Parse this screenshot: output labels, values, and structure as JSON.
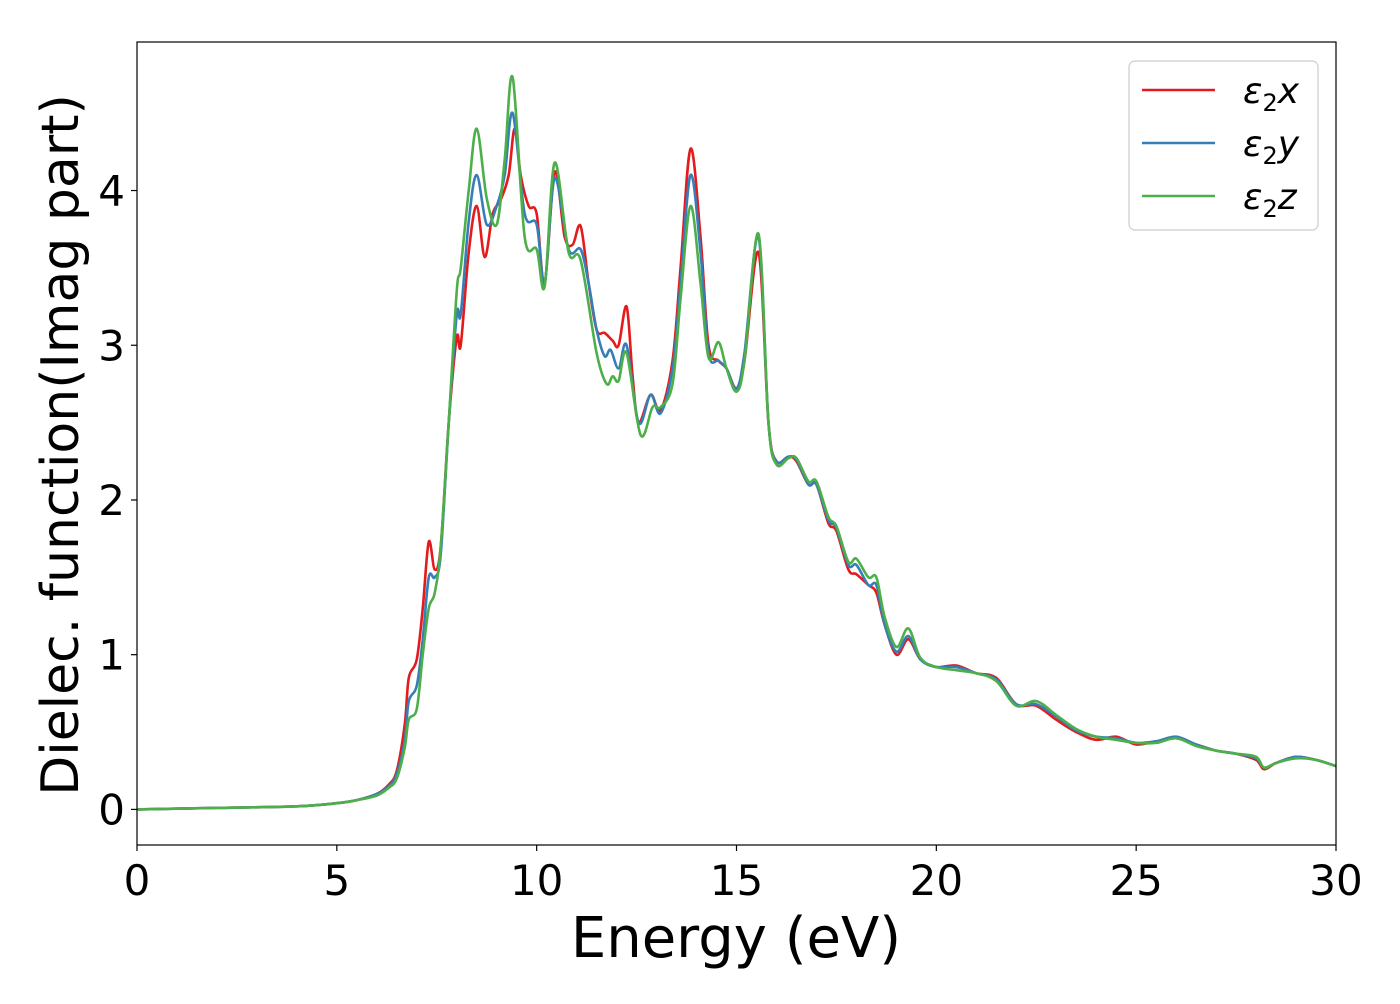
{
  "chart_data": {
    "type": "line",
    "title": "",
    "xlabel": "Energy (eV)",
    "ylabel": "Dielec. function(Imag part)",
    "xlim": [
      0,
      30
    ],
    "ylim": [
      -0.23,
      4.96
    ],
    "xticks": [
      0,
      5,
      10,
      15,
      20,
      25,
      30
    ],
    "yticks": [
      0,
      1,
      2,
      3,
      4
    ],
    "grid": false,
    "legend": {
      "placement": "top-right",
      "entries": [
        {
          "base": "ε",
          "sub": "2",
          "var": "x"
        },
        {
          "base": "ε",
          "sub": "2",
          "var": "y"
        },
        {
          "base": "ε",
          "sub": "2",
          "var": "z"
        }
      ]
    },
    "series": [
      {
        "name": "ε2x",
        "color": "#e41a1c",
        "x": [
          0,
          2,
          4,
          5,
          5.5,
          6,
          6.3,
          6.5,
          6.7,
          6.8,
          7.0,
          7.15,
          7.3,
          7.45,
          7.6,
          7.8,
          8.0,
          8.1,
          8.3,
          8.5,
          8.7,
          8.9,
          9.1,
          9.3,
          9.45,
          9.6,
          9.8,
          10.0,
          10.2,
          10.45,
          10.7,
          10.9,
          11.1,
          11.3,
          11.5,
          11.7,
          11.9,
          12.05,
          12.25,
          12.4,
          12.55,
          12.85,
          13.1,
          13.4,
          13.6,
          13.85,
          14.1,
          14.3,
          14.55,
          14.75,
          15.0,
          15.2,
          15.55,
          15.8,
          16.0,
          16.3,
          16.5,
          16.8,
          17.0,
          17.3,
          17.5,
          17.8,
          18.0,
          18.3,
          18.5,
          18.7,
          19.0,
          19.3,
          19.6,
          20,
          20.5,
          21,
          21.5,
          22,
          22.5,
          23,
          23.5,
          24,
          24.5,
          25,
          25.5,
          26,
          26.5,
          27,
          27.5,
          28,
          28.2,
          28.5,
          29,
          29.5,
          30
        ],
        "y": [
          0,
          0.01,
          0.02,
          0.04,
          0.06,
          0.1,
          0.16,
          0.25,
          0.55,
          0.85,
          0.97,
          1.3,
          1.73,
          1.55,
          1.7,
          2.5,
          3.05,
          3.0,
          3.6,
          3.9,
          3.57,
          3.85,
          3.94,
          4.1,
          4.4,
          4.1,
          3.9,
          3.85,
          3.4,
          4.12,
          3.7,
          3.65,
          3.77,
          3.4,
          3.1,
          3.08,
          3.03,
          3.0,
          3.25,
          2.8,
          2.5,
          2.68,
          2.58,
          2.9,
          3.5,
          4.27,
          3.7,
          3.0,
          2.9,
          2.85,
          2.72,
          2.9,
          3.6,
          2.5,
          2.25,
          2.28,
          2.25,
          2.1,
          2.1,
          1.85,
          1.8,
          1.55,
          1.52,
          1.45,
          1.4,
          1.2,
          1.0,
          1.1,
          0.97,
          0.92,
          0.93,
          0.88,
          0.85,
          0.68,
          0.67,
          0.58,
          0.5,
          0.45,
          0.47,
          0.42,
          0.44,
          0.46,
          0.42,
          0.38,
          0.36,
          0.32,
          0.26,
          0.3,
          0.34,
          0.32,
          0.28
        ]
      },
      {
        "name": "ε2y",
        "color": "#377eb8",
        "x": [
          0,
          2,
          4,
          5,
          5.5,
          6,
          6.3,
          6.5,
          6.7,
          6.8,
          7.0,
          7.15,
          7.3,
          7.45,
          7.6,
          7.8,
          8.0,
          8.1,
          8.3,
          8.5,
          8.75,
          9.0,
          9.2,
          9.4,
          9.7,
          10.0,
          10.2,
          10.45,
          10.8,
          11.1,
          11.3,
          11.5,
          11.7,
          11.85,
          12.05,
          12.25,
          12.55,
          12.85,
          13.1,
          13.4,
          13.6,
          13.85,
          14.1,
          14.3,
          14.55,
          14.75,
          15.0,
          15.2,
          15.55,
          15.8,
          16.0,
          16.3,
          16.5,
          16.8,
          17.0,
          17.3,
          17.5,
          17.8,
          18.0,
          18.3,
          18.5,
          18.7,
          19.0,
          19.3,
          19.6,
          20,
          20.5,
          21,
          21.5,
          22,
          22.5,
          23,
          23.5,
          24,
          24.5,
          25,
          25.5,
          26,
          26.5,
          27,
          27.5,
          28,
          28.2,
          28.5,
          29,
          29.5,
          30
        ],
        "y": [
          0,
          0.01,
          0.02,
          0.04,
          0.06,
          0.1,
          0.15,
          0.23,
          0.45,
          0.7,
          0.8,
          1.1,
          1.5,
          1.5,
          1.65,
          2.5,
          3.2,
          3.2,
          3.8,
          4.1,
          3.78,
          3.9,
          4.1,
          4.5,
          3.85,
          3.78,
          3.4,
          4.08,
          3.62,
          3.62,
          3.4,
          3.1,
          2.93,
          2.97,
          2.85,
          3.0,
          2.5,
          2.68,
          2.56,
          2.85,
          3.4,
          4.1,
          3.6,
          2.95,
          2.9,
          2.85,
          2.72,
          2.95,
          3.7,
          2.5,
          2.25,
          2.28,
          2.26,
          2.1,
          2.1,
          1.87,
          1.82,
          1.58,
          1.58,
          1.45,
          1.45,
          1.2,
          1.02,
          1.12,
          0.97,
          0.92,
          0.92,
          0.88,
          0.84,
          0.68,
          0.68,
          0.6,
          0.51,
          0.47,
          0.46,
          0.43,
          0.44,
          0.47,
          0.42,
          0.38,
          0.36,
          0.33,
          0.27,
          0.3,
          0.34,
          0.32,
          0.28
        ]
      },
      {
        "name": "ε2z",
        "color": "#4daf4a",
        "x": [
          0,
          2,
          4,
          5,
          5.5,
          6,
          6.3,
          6.5,
          6.7,
          6.8,
          7.0,
          7.15,
          7.3,
          7.45,
          7.6,
          7.8,
          8.0,
          8.1,
          8.3,
          8.5,
          8.75,
          9.0,
          9.2,
          9.4,
          9.7,
          10.0,
          10.2,
          10.45,
          10.8,
          11.1,
          11.5,
          11.75,
          11.9,
          12.05,
          12.25,
          12.6,
          12.9,
          13.1,
          13.4,
          13.6,
          13.85,
          14.1,
          14.3,
          14.55,
          14.75,
          15.0,
          15.2,
          15.55,
          15.8,
          16.0,
          16.3,
          16.5,
          16.8,
          17.0,
          17.3,
          17.5,
          17.8,
          18.0,
          18.3,
          18.5,
          18.7,
          19.0,
          19.3,
          19.6,
          20,
          20.5,
          21,
          21.5,
          22,
          22.5,
          23,
          23.5,
          24,
          24.5,
          25,
          25.5,
          26,
          26.5,
          27,
          27.5,
          28,
          28.2,
          28.5,
          29,
          29.5,
          30
        ],
        "y": [
          0,
          0.01,
          0.02,
          0.04,
          0.06,
          0.09,
          0.14,
          0.2,
          0.4,
          0.58,
          0.65,
          1.0,
          1.3,
          1.4,
          1.7,
          2.5,
          3.35,
          3.5,
          4.0,
          4.4,
          3.95,
          3.78,
          4.2,
          4.73,
          3.7,
          3.62,
          3.38,
          4.18,
          3.6,
          3.55,
          2.95,
          2.75,
          2.8,
          2.77,
          2.95,
          2.42,
          2.6,
          2.6,
          2.75,
          3.3,
          3.9,
          3.4,
          2.92,
          3.02,
          2.85,
          2.7,
          2.9,
          3.72,
          2.5,
          2.23,
          2.27,
          2.27,
          2.12,
          2.12,
          1.89,
          1.83,
          1.6,
          1.62,
          1.5,
          1.5,
          1.25,
          1.05,
          1.17,
          0.98,
          0.92,
          0.9,
          0.88,
          0.83,
          0.67,
          0.7,
          0.61,
          0.52,
          0.47,
          0.45,
          0.43,
          0.43,
          0.46,
          0.41,
          0.38,
          0.36,
          0.34,
          0.27,
          0.3,
          0.33,
          0.32,
          0.28
        ]
      }
    ]
  }
}
